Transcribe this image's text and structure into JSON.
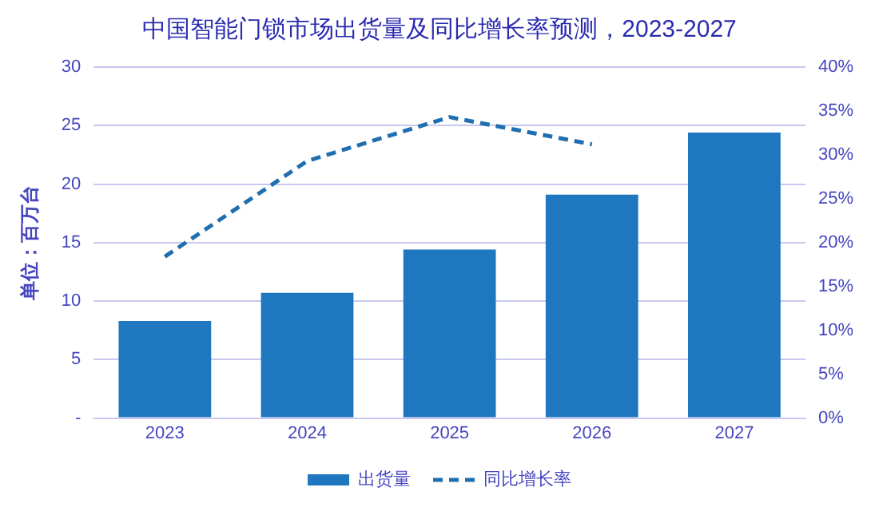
{
  "chart_data": {
    "type": "bar",
    "title": "中国智能门锁市场出货量及同比增长率预测，2023-2027",
    "ylabel": "单位：百万台",
    "categories": [
      "2023",
      "2024",
      "2025",
      "2026",
      "2027"
    ],
    "series": [
      {
        "name": "出货量",
        "color": "#1f77bf",
        "values": [
          8.3,
          10.7,
          14.4,
          19.1,
          24.4
        ]
      },
      {
        "name": "同比增长率",
        "type": "line",
        "axis": "y2",
        "color": "#1f6fb0",
        "line_style": "dashed",
        "marker": "none",
        "values": [
          18.4,
          29.3,
          34.3,
          31.2,
          null
        ]
      }
    ],
    "ylim": [
      0,
      30
    ],
    "yticks": [
      {
        "value": 0,
        "label": "-"
      },
      5,
      10,
      15,
      20,
      25,
      30
    ],
    "y2lim": [
      0,
      40
    ],
    "y2ticks": [
      {
        "value": 0,
        "label": "0%"
      },
      {
        "value": 5,
        "label": "5%"
      },
      {
        "value": 10,
        "label": "10%"
      },
      {
        "value": 15,
        "label": "15%"
      },
      {
        "value": 20,
        "label": "20%"
      },
      {
        "value": 25,
        "label": "25%"
      },
      {
        "value": 30,
        "label": "30%"
      },
      {
        "value": 35,
        "label": "35%"
      },
      {
        "value": 40,
        "label": "40%"
      }
    ],
    "grid": "y",
    "legend": "bottom"
  }
}
